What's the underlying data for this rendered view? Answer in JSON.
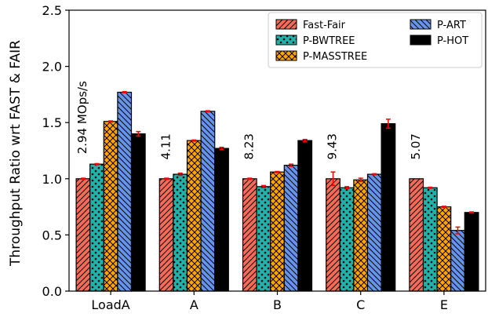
{
  "chart_data": {
    "type": "bar",
    "ylabel": "Throughput Ratio wrt FAST & FAIR",
    "xlabel": "",
    "ylim": [
      0,
      2.5
    ],
    "yticks": [
      "0.0",
      "0.5",
      "1.0",
      "1.5",
      "2.0",
      "2.5"
    ],
    "categories": [
      "LoadA",
      "A",
      "B",
      "C",
      "E"
    ],
    "legend_position": "top-right",
    "series": [
      {
        "name": "Fast-Fair",
        "color": "#fa6b55",
        "hatch": "diagonal-forward",
        "values": [
          1.0,
          1.0,
          1.0,
          1.0,
          1.0
        ],
        "errors": [
          0.005,
          0.005,
          0.005,
          0.06,
          0.0
        ]
      },
      {
        "name": "P-BWTREE",
        "color": "#20b2aa",
        "hatch": "dots",
        "values": [
          1.13,
          1.04,
          0.93,
          0.92,
          0.92
        ],
        "errors": [
          0.005,
          0.01,
          0.01,
          0.01,
          0.005
        ]
      },
      {
        "name": "P-MASSTREE",
        "color": "#ffa500",
        "hatch": "crosshatch",
        "values": [
          1.51,
          1.34,
          1.06,
          0.99,
          0.75
        ],
        "errors": [
          0.005,
          0.005,
          0.005,
          0.015,
          0.005
        ]
      },
      {
        "name": "P-ART",
        "color": "#6495ed",
        "hatch": "diagonal-back",
        "values": [
          1.77,
          1.6,
          1.12,
          1.04,
          0.54
        ],
        "errors": [
          0.005,
          0.005,
          0.01,
          0.005,
          0.03
        ]
      },
      {
        "name": "P-HOT",
        "color": "#000000",
        "hatch": "none",
        "values": [
          1.4,
          1.27,
          1.34,
          1.49,
          0.7
        ],
        "errors": [
          0.02,
          0.01,
          0.01,
          0.04,
          0.005
        ]
      }
    ],
    "annotations": [
      "2.94 MOps/s",
      "4.11",
      "8.23",
      "9.43",
      "5.07"
    ],
    "error_bar_color": "#ff0000",
    "grid": false
  }
}
